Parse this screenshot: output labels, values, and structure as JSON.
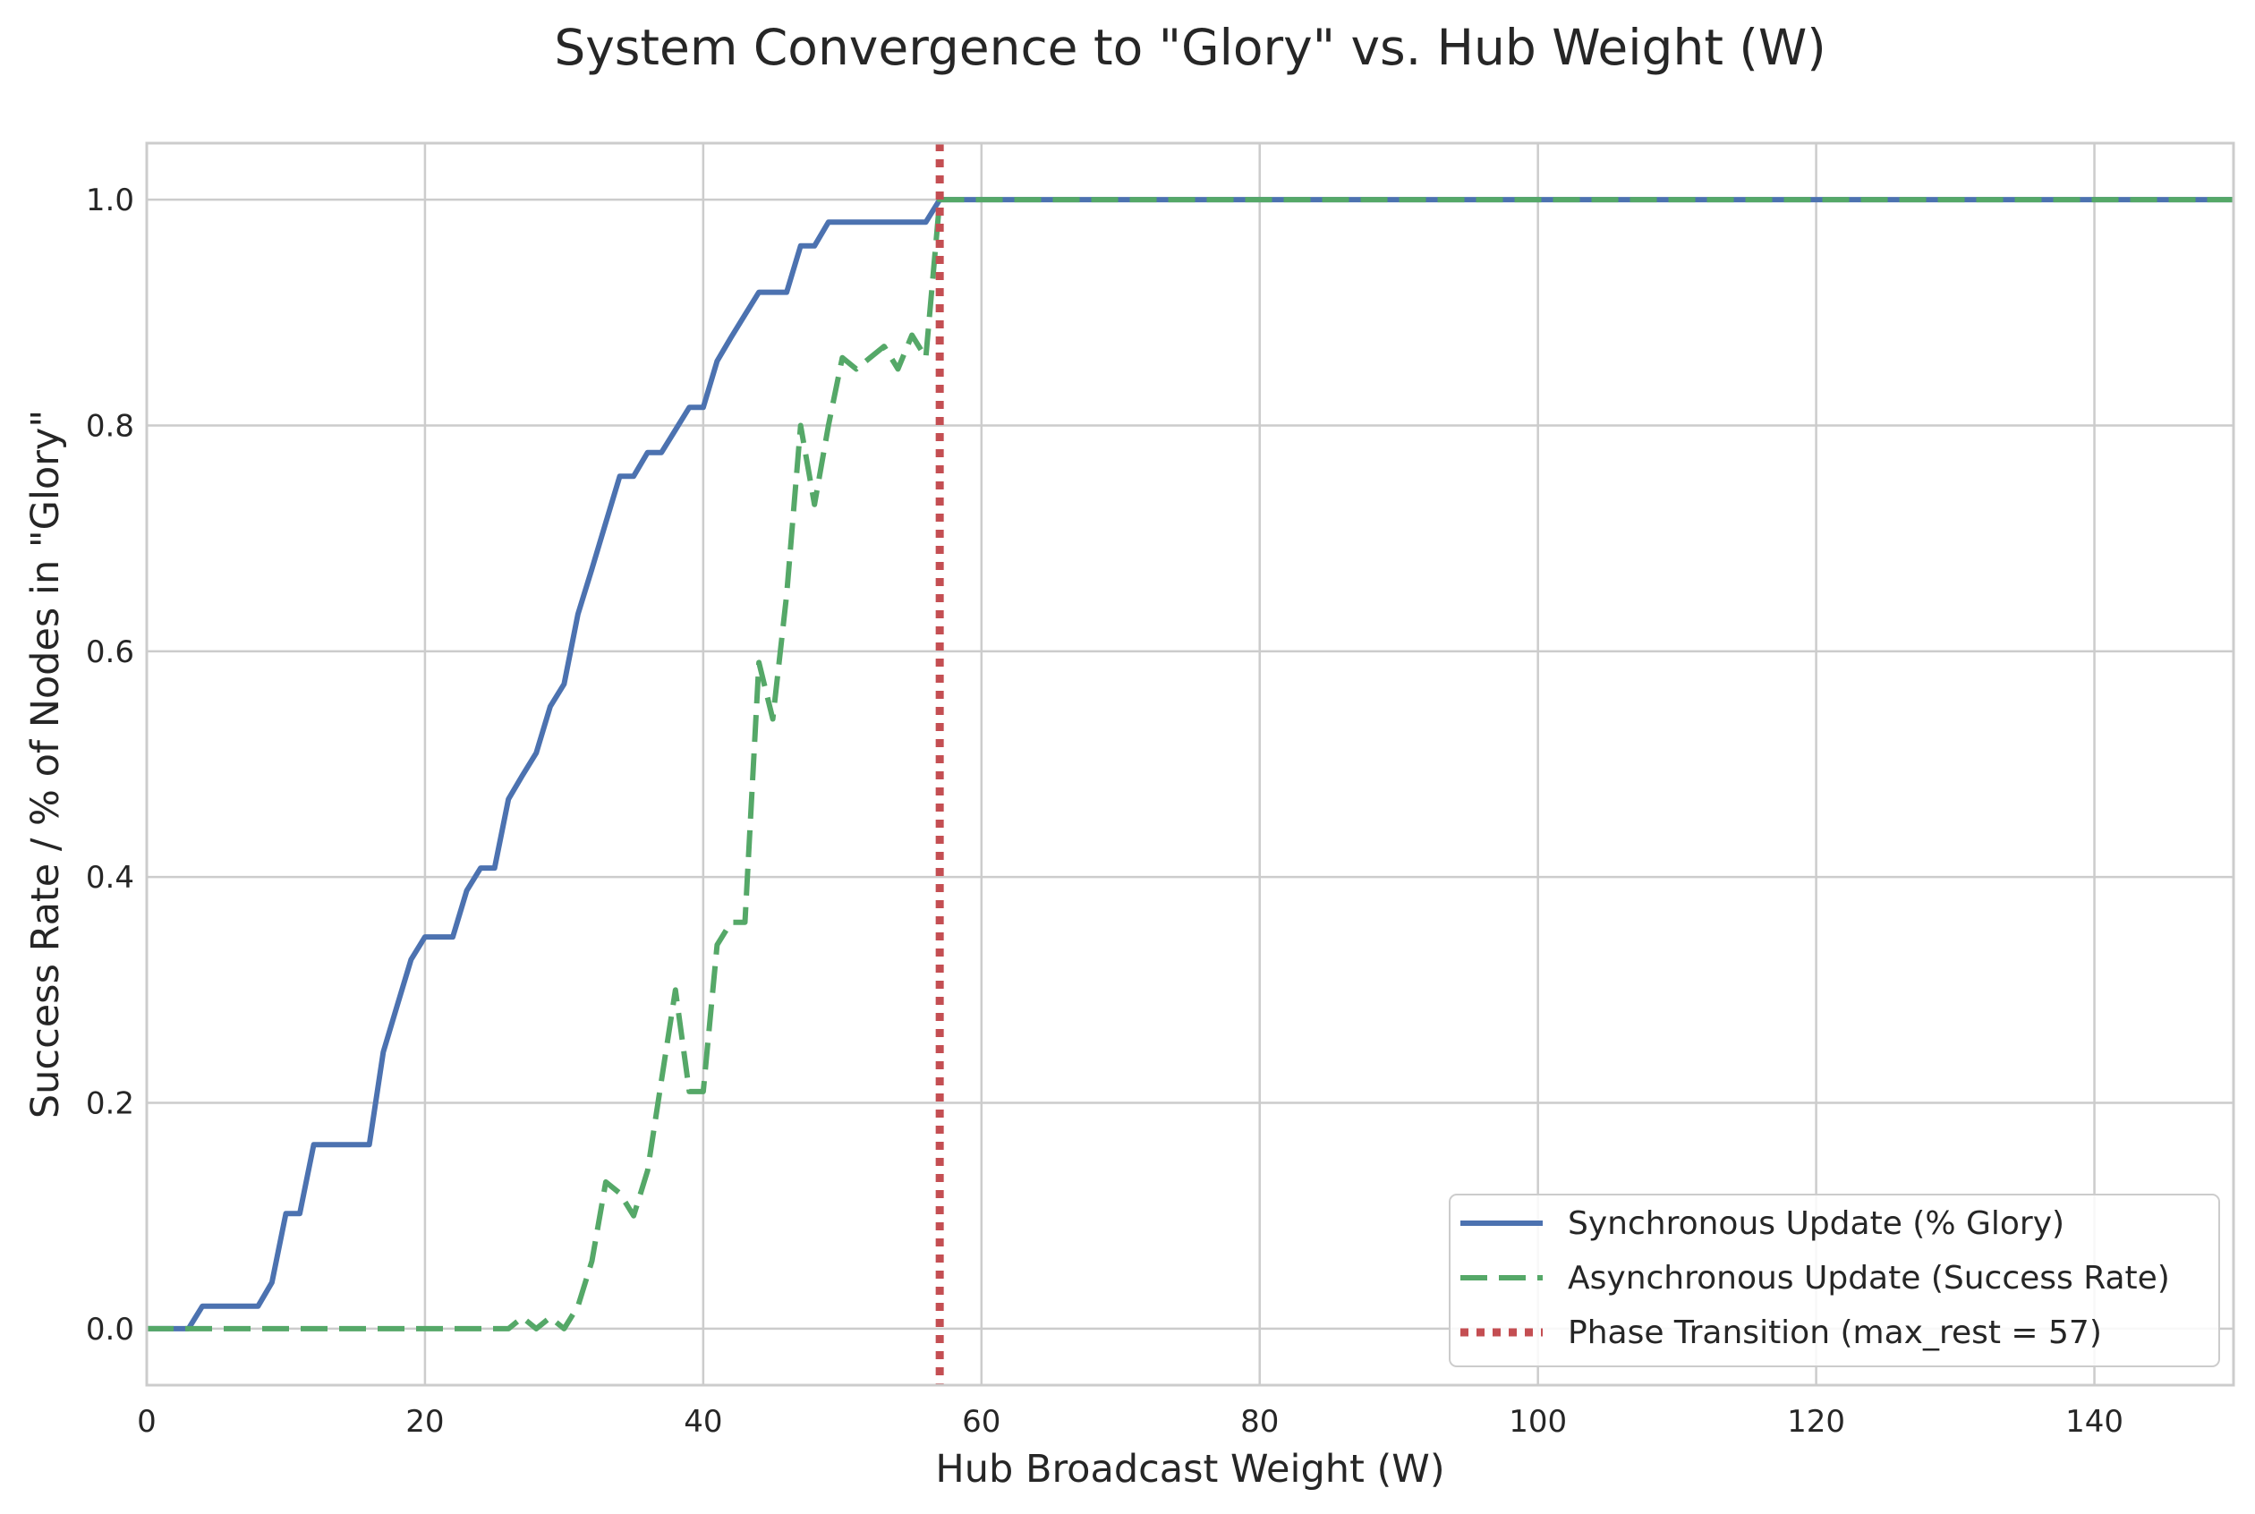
{
  "chart_data": {
    "type": "line",
    "title": "System Convergence to \"Glory\" vs. Hub Weight (W)",
    "xlabel": "Hub Broadcast Weight (W)",
    "ylabel": "Success Rate / % of Nodes in \"Glory\"",
    "xlim": [
      0,
      150
    ],
    "ylim": [
      -0.05,
      1.05
    ],
    "xticks": [
      0,
      20,
      40,
      60,
      80,
      100,
      120,
      140
    ],
    "yticks": [
      0.0,
      0.2,
      0.4,
      0.6,
      0.8,
      1.0
    ],
    "grid": true,
    "legend_position": "lower-right",
    "series": [
      {
        "name": "Synchronous Update (% Glory)",
        "color": "#4c72b0",
        "style": "solid",
        "x": [
          0,
          1,
          2,
          3,
          4,
          5,
          6,
          7,
          8,
          9,
          10,
          11,
          12,
          13,
          14,
          15,
          16,
          17,
          18,
          19,
          20,
          21,
          22,
          23,
          24,
          25,
          26,
          27,
          28,
          29,
          30,
          31,
          32,
          33,
          34,
          35,
          36,
          37,
          38,
          39,
          40,
          41,
          42,
          43,
          44,
          45,
          46,
          47,
          48,
          49,
          50,
          51,
          52,
          53,
          54,
          55,
          56,
          57,
          150
        ],
        "y": [
          0,
          0,
          0,
          0,
          0.02,
          0.02,
          0.02,
          0.02,
          0.02,
          0.041,
          0.102,
          0.102,
          0.163,
          0.163,
          0.163,
          0.163,
          0.163,
          0.245,
          0.286,
          0.327,
          0.347,
          0.347,
          0.347,
          0.388,
          0.408,
          0.408,
          0.469,
          0.49,
          0.51,
          0.551,
          0.571,
          0.633,
          0.673,
          0.714,
          0.755,
          0.755,
          0.776,
          0.776,
          0.796,
          0.816,
          0.816,
          0.857,
          0.878,
          0.898,
          0.918,
          0.918,
          0.918,
          0.959,
          0.959,
          0.98,
          0.98,
          0.98,
          0.98,
          0.98,
          0.98,
          0.98,
          0.98,
          1.0,
          1.0
        ]
      },
      {
        "name": "Asynchronous Update (Success Rate)",
        "color": "#55a868",
        "style": "dashed",
        "x": [
          0,
          1,
          2,
          3,
          4,
          5,
          6,
          7,
          8,
          9,
          10,
          11,
          12,
          13,
          14,
          15,
          16,
          17,
          18,
          19,
          20,
          21,
          22,
          23,
          24,
          25,
          26,
          27,
          28,
          29,
          30,
          31,
          32,
          33,
          34,
          35,
          36,
          37,
          38,
          39,
          40,
          41,
          42,
          43,
          44,
          45,
          46,
          47,
          48,
          49,
          50,
          51,
          52,
          53,
          54,
          55,
          56,
          57,
          150
        ],
        "y": [
          0,
          0,
          0,
          0,
          0,
          0,
          0,
          0,
          0,
          0,
          0,
          0,
          0,
          0,
          0,
          0,
          0,
          0,
          0,
          0,
          0,
          0,
          0,
          0,
          0,
          0,
          0,
          0.01,
          0,
          0.01,
          0,
          0.02,
          0.06,
          0.13,
          0.12,
          0.1,
          0.14,
          0.22,
          0.3,
          0.21,
          0.21,
          0.34,
          0.36,
          0.36,
          0.59,
          0.54,
          0.65,
          0.8,
          0.73,
          0.8,
          0.86,
          0.85,
          0.86,
          0.87,
          0.85,
          0.88,
          0.86,
          1.0,
          1.0
        ]
      }
    ],
    "annotations": [
      {
        "type": "vline",
        "x": 57,
        "name": "Phase Transition (max_rest = 57)",
        "color": "#c44e52",
        "style": "dotted"
      }
    ]
  }
}
